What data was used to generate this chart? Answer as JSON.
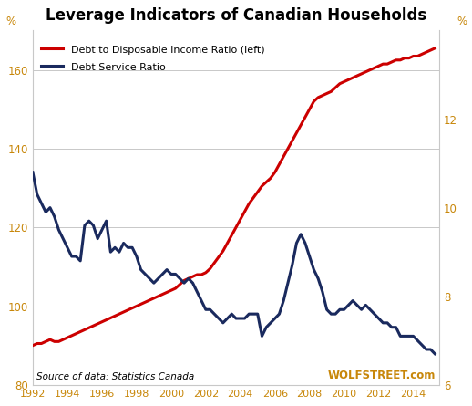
{
  "title": "Leverage Indicators of Canadian Households",
  "source_text": "Source of data: Statistics Canada",
  "watermark": "WOLFSTREET.com",
  "left_pct_label": "%",
  "right_pct_label": "%",
  "left_ylim": [
    80,
    170
  ],
  "right_ylim": [
    6,
    14
  ],
  "left_yticks": [
    80,
    100,
    120,
    140,
    160
  ],
  "right_yticks": [
    6,
    8,
    10,
    12
  ],
  "xlim": [
    1992,
    2015.5
  ],
  "xticks": [
    1992,
    1994,
    1996,
    1998,
    2000,
    2002,
    2004,
    2006,
    2008,
    2010,
    2012,
    2014
  ],
  "background_color": "#ffffff",
  "grid_color": "#c8c8c8",
  "legend1_label": "Debt to Disposable Income Ratio (left)",
  "legend2_label": "Debt Service Ratio",
  "line1_color": "#cc0000",
  "line2_color": "#1a2a5e",
  "tick_color": "#c8870a",
  "line_width": 2.2,
  "debt_income_years": [
    1992.0,
    1992.25,
    1992.5,
    1992.75,
    1993.0,
    1993.25,
    1993.5,
    1993.75,
    1994.0,
    1994.25,
    1994.5,
    1994.75,
    1995.0,
    1995.25,
    1995.5,
    1995.75,
    1996.0,
    1996.25,
    1996.5,
    1996.75,
    1997.0,
    1997.25,
    1997.5,
    1997.75,
    1998.0,
    1998.25,
    1998.5,
    1998.75,
    1999.0,
    1999.25,
    1999.5,
    1999.75,
    2000.0,
    2000.25,
    2000.5,
    2000.75,
    2001.0,
    2001.25,
    2001.5,
    2001.75,
    2002.0,
    2002.25,
    2002.5,
    2002.75,
    2003.0,
    2003.25,
    2003.5,
    2003.75,
    2004.0,
    2004.25,
    2004.5,
    2004.75,
    2005.0,
    2005.25,
    2005.5,
    2005.75,
    2006.0,
    2006.25,
    2006.5,
    2006.75,
    2007.0,
    2007.25,
    2007.5,
    2007.75,
    2008.0,
    2008.25,
    2008.5,
    2008.75,
    2009.0,
    2009.25,
    2009.5,
    2009.75,
    2010.0,
    2010.25,
    2010.5,
    2010.75,
    2011.0,
    2011.25,
    2011.5,
    2011.75,
    2012.0,
    2012.25,
    2012.5,
    2012.75,
    2013.0,
    2013.25,
    2013.5,
    2013.75,
    2014.0,
    2014.25,
    2014.5,
    2014.75,
    2015.0,
    2015.25
  ],
  "debt_income_values": [
    90.0,
    90.5,
    90.5,
    91.0,
    91.5,
    91.0,
    91.0,
    91.5,
    92.0,
    92.5,
    93.0,
    93.5,
    94.0,
    94.5,
    95.0,
    95.5,
    96.0,
    96.5,
    97.0,
    97.5,
    98.0,
    98.5,
    99.0,
    99.5,
    100.0,
    100.5,
    101.0,
    101.5,
    102.0,
    102.5,
    103.0,
    103.5,
    104.0,
    104.5,
    105.5,
    106.5,
    107.0,
    107.5,
    108.0,
    108.0,
    108.5,
    109.5,
    111.0,
    112.5,
    114.0,
    116.0,
    118.0,
    120.0,
    122.0,
    124.0,
    126.0,
    127.5,
    129.0,
    130.5,
    131.5,
    132.5,
    134.0,
    136.0,
    138.0,
    140.0,
    142.0,
    144.0,
    146.0,
    148.0,
    150.0,
    152.0,
    153.0,
    153.5,
    154.0,
    154.5,
    155.5,
    156.5,
    157.0,
    157.5,
    158.0,
    158.5,
    159.0,
    159.5,
    160.0,
    160.5,
    161.0,
    161.5,
    161.5,
    162.0,
    162.5,
    162.5,
    163.0,
    163.0,
    163.5,
    163.5,
    164.0,
    164.5,
    165.0,
    165.5
  ],
  "debt_service_years": [
    1992.0,
    1992.25,
    1992.5,
    1992.75,
    1993.0,
    1993.25,
    1993.5,
    1993.75,
    1994.0,
    1994.25,
    1994.5,
    1994.75,
    1995.0,
    1995.25,
    1995.5,
    1995.75,
    1996.0,
    1996.25,
    1996.5,
    1996.75,
    1997.0,
    1997.25,
    1997.5,
    1997.75,
    1998.0,
    1998.25,
    1998.5,
    1998.75,
    1999.0,
    1999.25,
    1999.5,
    1999.75,
    2000.0,
    2000.25,
    2000.5,
    2000.75,
    2001.0,
    2001.25,
    2001.5,
    2001.75,
    2002.0,
    2002.25,
    2002.5,
    2002.75,
    2003.0,
    2003.25,
    2003.5,
    2003.75,
    2004.0,
    2004.25,
    2004.5,
    2004.75,
    2005.0,
    2005.25,
    2005.5,
    2005.75,
    2006.0,
    2006.25,
    2006.5,
    2006.75,
    2007.0,
    2007.25,
    2007.5,
    2007.75,
    2008.0,
    2008.25,
    2008.5,
    2008.75,
    2009.0,
    2009.25,
    2009.5,
    2009.75,
    2010.0,
    2010.25,
    2010.5,
    2010.75,
    2011.0,
    2011.25,
    2011.5,
    2011.75,
    2012.0,
    2012.25,
    2012.5,
    2012.75,
    2013.0,
    2013.25,
    2013.5,
    2013.75,
    2014.0,
    2014.25,
    2014.5,
    2014.75,
    2015.0,
    2015.25
  ],
  "debt_service_values": [
    10.8,
    10.3,
    10.1,
    9.9,
    10.0,
    9.8,
    9.5,
    9.3,
    9.1,
    8.9,
    8.9,
    8.8,
    9.6,
    9.7,
    9.6,
    9.3,
    9.5,
    9.7,
    9.0,
    9.1,
    9.0,
    9.2,
    9.1,
    9.1,
    8.9,
    8.6,
    8.5,
    8.4,
    8.3,
    8.4,
    8.5,
    8.6,
    8.5,
    8.5,
    8.4,
    8.3,
    8.4,
    8.3,
    8.1,
    7.9,
    7.7,
    7.7,
    7.6,
    7.5,
    7.4,
    7.5,
    7.6,
    7.5,
    7.5,
    7.5,
    7.6,
    7.6,
    7.6,
    7.1,
    7.3,
    7.4,
    7.5,
    7.6,
    7.9,
    8.3,
    8.7,
    9.2,
    9.4,
    9.2,
    8.9,
    8.6,
    8.4,
    8.1,
    7.7,
    7.6,
    7.6,
    7.7,
    7.7,
    7.8,
    7.9,
    7.8,
    7.7,
    7.8,
    7.7,
    7.6,
    7.5,
    7.4,
    7.4,
    7.3,
    7.3,
    7.1,
    7.1,
    7.1,
    7.1,
    7.0,
    6.9,
    6.8,
    6.8,
    6.7
  ]
}
